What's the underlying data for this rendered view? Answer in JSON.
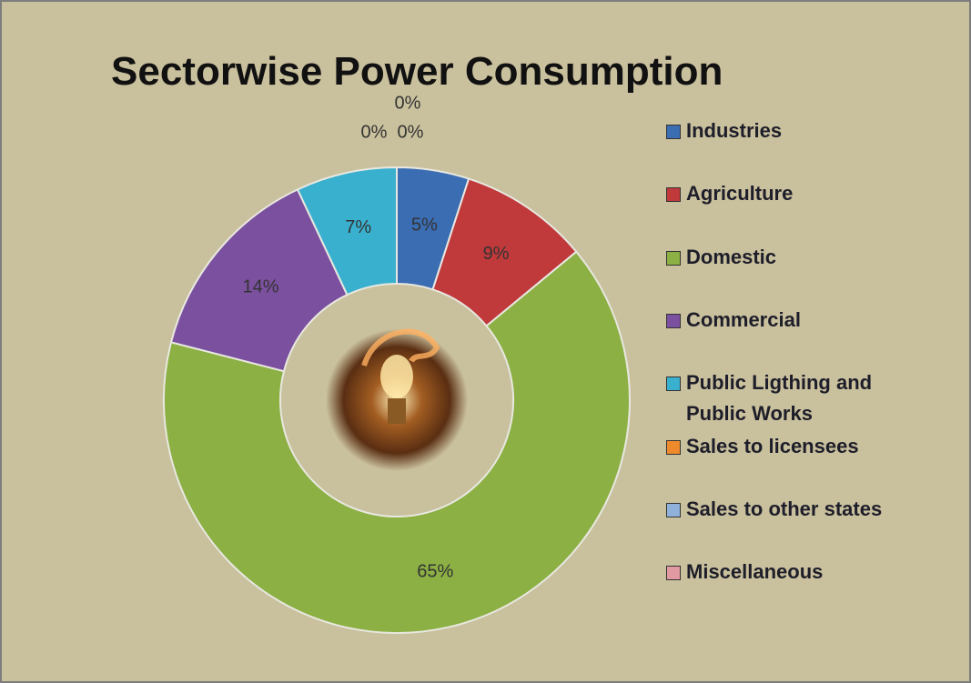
{
  "chart_data": {
    "type": "donut",
    "title": "Sectorwise Power Consumption",
    "categories": [
      "Industries",
      "Agriculture",
      "Domestic",
      "Commercial",
      "Public Ligthing and Public Works",
      "Sales to licensees",
      "Sales to other states",
      "Miscellaneous"
    ],
    "values": [
      5,
      9,
      65,
      14,
      7,
      0,
      0,
      0
    ],
    "value_labels": [
      "5%",
      "9%",
      "65%",
      "14%",
      "7%",
      "0%",
      "0%",
      "0%"
    ],
    "colors": [
      "#3b6db3",
      "#c0393b",
      "#8cb043",
      "#7b509f",
      "#3ab0cf",
      "#ee8a2c",
      "#8fb1da",
      "#e19aa1"
    ],
    "legend": "right"
  }
}
